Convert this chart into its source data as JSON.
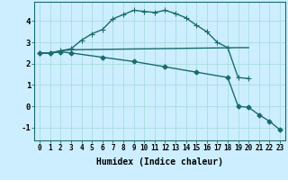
{
  "background_color": "#cceeff",
  "grid_color": "#aadddd",
  "line_color": "#1a6b6b",
  "xlabel": "Humidex (Indice chaleur)",
  "xlim": [
    -0.5,
    23.5
  ],
  "ylim": [
    -1.6,
    4.9
  ],
  "yticks": [
    -1,
    0,
    1,
    2,
    3,
    4
  ],
  "xtick_vals": [
    0,
    1,
    2,
    3,
    4,
    5,
    6,
    7,
    8,
    9,
    10,
    11,
    12,
    13,
    14,
    15,
    16,
    17,
    18,
    19,
    20,
    21,
    22,
    23
  ],
  "xtick_labels": [
    "0",
    "1",
    "2",
    "3",
    "4",
    "5",
    "6",
    "7",
    "8",
    "9",
    "10",
    "11",
    "12",
    "13",
    "14",
    "15",
    "16",
    "17",
    "18",
    "19",
    "20",
    "21",
    "22",
    "23"
  ],
  "line1_x": [
    0,
    1,
    2,
    3,
    4,
    5,
    6,
    7,
    8,
    9,
    10,
    11,
    12,
    13,
    14,
    15,
    16,
    17,
    18,
    19,
    20
  ],
  "line1_y": [
    2.5,
    2.5,
    2.6,
    2.7,
    3.1,
    3.4,
    3.6,
    4.1,
    4.3,
    4.5,
    4.45,
    4.4,
    4.5,
    4.35,
    4.15,
    3.8,
    3.5,
    3.0,
    2.75,
    1.35,
    1.3
  ],
  "line2_x": [
    0,
    1,
    2,
    3,
    19,
    20
  ],
  "line2_y": [
    2.5,
    2.5,
    2.6,
    2.65,
    2.75,
    2.75
  ],
  "line3_x": [
    0,
    1,
    2,
    3,
    6,
    9,
    12,
    15,
    18,
    19,
    20,
    21,
    22,
    23
  ],
  "line3_y": [
    2.5,
    2.5,
    2.55,
    2.5,
    2.3,
    2.1,
    1.85,
    1.6,
    1.35,
    0.0,
    -0.05,
    -0.4,
    -0.7,
    -1.1
  ],
  "marker_size": 2.5,
  "linewidth": 1.0,
  "xlabel_fontsize": 7,
  "tick_fontsize": 5.5,
  "ytick_fontsize": 6.5
}
